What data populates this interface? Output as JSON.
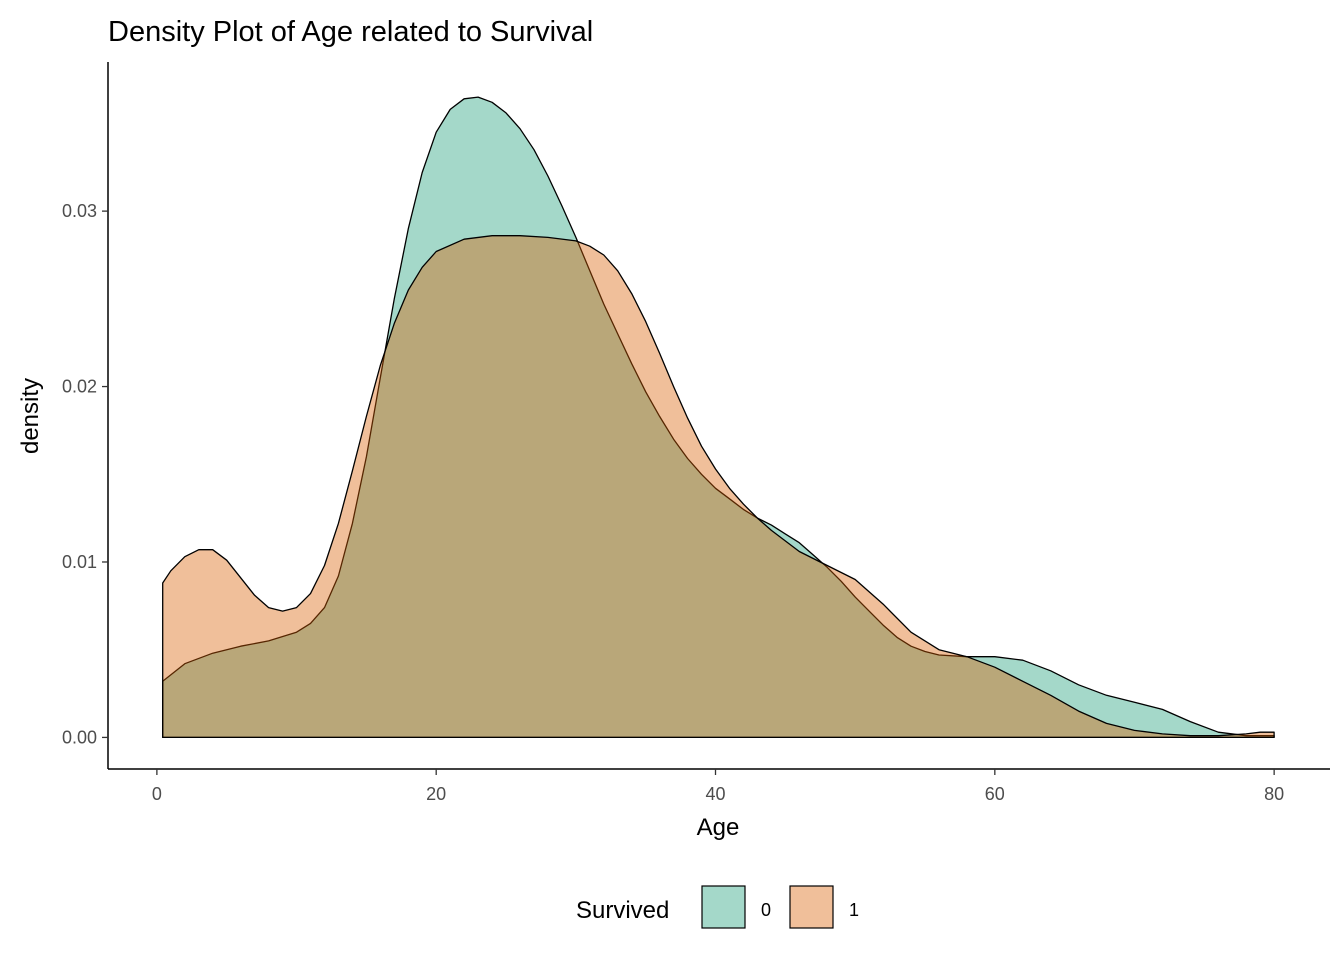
{
  "chart_data": {
    "type": "area",
    "title": "Density Plot of Age related to Survival",
    "xlabel": "Age",
    "ylabel": "density",
    "xlim": [
      -3.5,
      84
    ],
    "ylim": [
      -0.0018,
      0.0385
    ],
    "x_ticks": [
      0,
      20,
      40,
      60,
      80
    ],
    "x_tick_labels": [
      "0",
      "20",
      "40",
      "60",
      "80"
    ],
    "y_ticks": [
      0,
      0.01,
      0.02,
      0.03
    ],
    "y_tick_labels": [
      "0.00",
      "0.01",
      "0.02",
      "0.03"
    ],
    "grid": false,
    "legend": {
      "title": "Survived",
      "position": "bottom"
    },
    "series": [
      {
        "name": "0",
        "color": "#1B9E77",
        "points": [
          [
            0.42,
            0.0032
          ],
          [
            2,
            0.0042
          ],
          [
            4,
            0.0048
          ],
          [
            6,
            0.0052
          ],
          [
            8,
            0.0055
          ],
          [
            10,
            0.006
          ],
          [
            11,
            0.0065
          ],
          [
            12,
            0.0074
          ],
          [
            13,
            0.0092
          ],
          [
            14,
            0.0122
          ],
          [
            15,
            0.016
          ],
          [
            16,
            0.0205
          ],
          [
            17,
            0.025
          ],
          [
            18,
            0.029
          ],
          [
            19,
            0.0322
          ],
          [
            20,
            0.0345
          ],
          [
            21,
            0.0358
          ],
          [
            22,
            0.0364
          ],
          [
            23,
            0.0365
          ],
          [
            24,
            0.0362
          ],
          [
            25,
            0.0356
          ],
          [
            26,
            0.0347
          ],
          [
            27,
            0.0335
          ],
          [
            28,
            0.032
          ],
          [
            29,
            0.0303
          ],
          [
            30,
            0.0285
          ],
          [
            31,
            0.0266
          ],
          [
            32,
            0.0247
          ],
          [
            33,
            0.023
          ],
          [
            34,
            0.0213
          ],
          [
            35,
            0.0197
          ],
          [
            36,
            0.0183
          ],
          [
            37,
            0.017
          ],
          [
            38,
            0.0159
          ],
          [
            39,
            0.015
          ],
          [
            40,
            0.0142
          ],
          [
            41,
            0.0136
          ],
          [
            42,
            0.013
          ],
          [
            43,
            0.0125
          ],
          [
            44,
            0.0121
          ],
          [
            45,
            0.0116
          ],
          [
            46,
            0.0111
          ],
          [
            47,
            0.0104
          ],
          [
            48,
            0.0097
          ],
          [
            49,
            0.0089
          ],
          [
            50,
            0.008
          ],
          [
            51,
            0.0072
          ],
          [
            52,
            0.0064
          ],
          [
            53,
            0.0057
          ],
          [
            54,
            0.0052
          ],
          [
            55,
            0.0049
          ],
          [
            56,
            0.0047
          ],
          [
            58,
            0.0046
          ],
          [
            60,
            0.0046
          ],
          [
            62,
            0.0044
          ],
          [
            64,
            0.0038
          ],
          [
            66,
            0.003
          ],
          [
            68,
            0.0024
          ],
          [
            70,
            0.002
          ],
          [
            72,
            0.0016
          ],
          [
            74,
            0.0009
          ],
          [
            76,
            0.0003
          ],
          [
            78,
            0.0001
          ],
          [
            80,
            0.0001
          ]
        ]
      },
      {
        "name": "1",
        "color": "#D95F02",
        "points": [
          [
            0.42,
            0.0088
          ],
          [
            1,
            0.0095
          ],
          [
            2,
            0.0103
          ],
          [
            3,
            0.0107
          ],
          [
            4,
            0.0107
          ],
          [
            5,
            0.0101
          ],
          [
            6,
            0.0091
          ],
          [
            7,
            0.0081
          ],
          [
            8,
            0.0074
          ],
          [
            9,
            0.0072
          ],
          [
            10,
            0.0074
          ],
          [
            11,
            0.0082
          ],
          [
            12,
            0.0098
          ],
          [
            13,
            0.0122
          ],
          [
            14,
            0.0152
          ],
          [
            15,
            0.0183
          ],
          [
            16,
            0.0212
          ],
          [
            17,
            0.0236
          ],
          [
            18,
            0.0255
          ],
          [
            19,
            0.0268
          ],
          [
            20,
            0.0277
          ],
          [
            22,
            0.0284
          ],
          [
            24,
            0.0286
          ],
          [
            26,
            0.0286
          ],
          [
            28,
            0.0285
          ],
          [
            30,
            0.0283
          ],
          [
            31,
            0.028
          ],
          [
            32,
            0.0275
          ],
          [
            33,
            0.0266
          ],
          [
            34,
            0.0253
          ],
          [
            35,
            0.0237
          ],
          [
            36,
            0.0219
          ],
          [
            37,
            0.02
          ],
          [
            38,
            0.0182
          ],
          [
            39,
            0.0166
          ],
          [
            40,
            0.0153
          ],
          [
            41,
            0.0142
          ],
          [
            42,
            0.0133
          ],
          [
            43,
            0.0125
          ],
          [
            44,
            0.0118
          ],
          [
            46,
            0.0106
          ],
          [
            48,
            0.0098
          ],
          [
            50,
            0.009
          ],
          [
            52,
            0.0076
          ],
          [
            54,
            0.006
          ],
          [
            56,
            0.005
          ],
          [
            58,
            0.0046
          ],
          [
            60,
            0.004
          ],
          [
            62,
            0.0032
          ],
          [
            64,
            0.0024
          ],
          [
            66,
            0.0015
          ],
          [
            68,
            0.0008
          ],
          [
            70,
            0.0004
          ],
          [
            72,
            0.0002
          ],
          [
            74,
            0.0001
          ],
          [
            76,
            0.0001
          ],
          [
            78,
            0.0002
          ],
          [
            79,
            0.0003
          ],
          [
            80,
            0.0003
          ]
        ]
      }
    ]
  }
}
